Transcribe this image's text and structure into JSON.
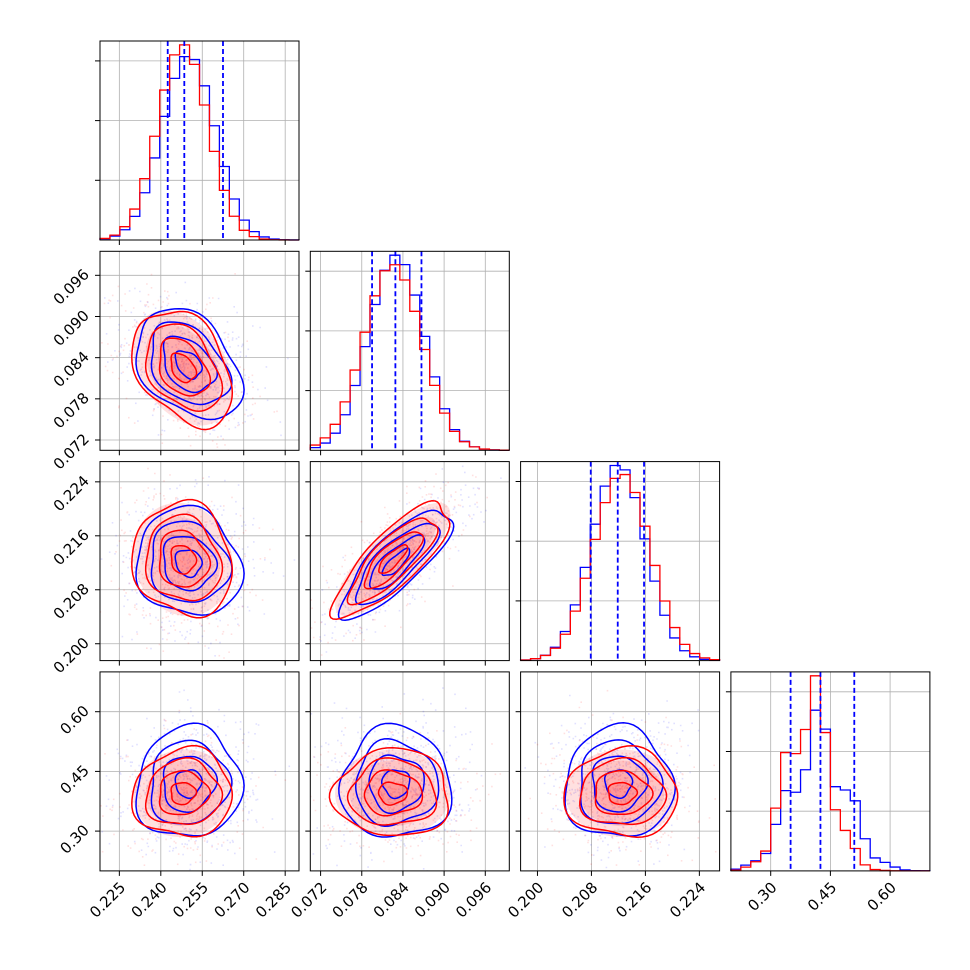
{
  "chart_data": {
    "type": "corner",
    "parameters": [
      {
        "index": 0,
        "range": [
          0.218,
          0.29
        ],
        "ticks": [
          0.225,
          0.24,
          0.255,
          0.27,
          0.285
        ],
        "tick_labels": [
          "0.225",
          "0.240",
          "0.255",
          "0.270",
          "0.285"
        ],
        "quantiles": [
          0.2425,
          0.2485,
          0.2625
        ]
      },
      {
        "index": 1,
        "range": [
          0.0705,
          0.0995
        ],
        "ticks": [
          0.072,
          0.078,
          0.084,
          0.09,
          0.096
        ],
        "tick_labels": [
          "0.072",
          "0.078",
          "0.084",
          "0.090",
          "0.096"
        ],
        "quantiles": [
          0.0795,
          0.0829,
          0.0867
        ]
      },
      {
        "index": 2,
        "range": [
          0.1975,
          0.227
        ],
        "ticks": [
          0.2,
          0.208,
          0.216,
          0.224
        ],
        "tick_labels": [
          "0.200",
          "0.208",
          "0.216",
          "0.224"
        ],
        "quantiles": [
          0.2079,
          0.2119,
          0.2158
        ]
      },
      {
        "index": 3,
        "range": [
          0.2,
          0.7
        ],
        "ticks": [
          0.3,
          0.45,
          0.6
        ],
        "tick_labels": [
          "0.30",
          "0.45",
          "0.60"
        ],
        "quantiles": [
          0.35,
          0.425,
          0.51
        ]
      }
    ],
    "series": [
      {
        "color": "#0000ff",
        "mean": [
          0.25,
          0.083,
          0.212,
          0.42
        ],
        "std": [
          0.0095,
          0.004,
          0.004,
          0.07
        ],
        "corr": [
          [
            1,
            -0.35,
            -0.1,
            0.05
          ],
          [
            -0.35,
            1,
            0.8,
            0.0
          ],
          [
            -0.1,
            0.8,
            1,
            0.0
          ],
          [
            0.05,
            0.0,
            0.0,
            1
          ]
        ]
      },
      {
        "color": "#ff0000",
        "mean": [
          0.248,
          0.0825,
          0.2125,
          0.395
        ],
        "std": [
          0.009,
          0.0042,
          0.0042,
          0.055
        ],
        "corr": [
          [
            1,
            -0.35,
            -0.1,
            0.05
          ],
          [
            -0.35,
            1,
            0.8,
            0.0
          ],
          [
            -0.1,
            0.8,
            1,
            0.0
          ],
          [
            0.05,
            0.0,
            0.0,
            1
          ]
        ]
      }
    ],
    "contour_levels_sigma": [
      0.5,
      1.0,
      1.5,
      2.0
    ],
    "histogram_bins": 20,
    "histogram_type": "step",
    "quantile_line_color": "#0000ff",
    "quantile_line_style": "dashed",
    "grid": true,
    "diagonal_ytick_labels": false,
    "axis_labels": []
  }
}
